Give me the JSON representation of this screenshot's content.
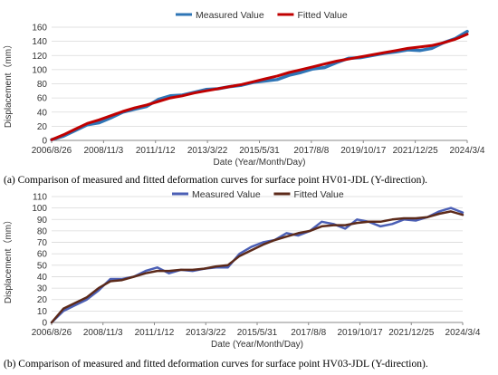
{
  "chart_data": [
    {
      "type": "line",
      "xlabel": "Date (Year/Month/Day)",
      "ylabel": "Displacement（mm）",
      "x_tick_labels": [
        "2006/8/26",
        "2008/11/3",
        "2011/1/12",
        "2013/3/22",
        "2015/5/31",
        "2017/8/8",
        "2019/10/17",
        "2021/12/25",
        "2024/3/4"
      ],
      "ylim": [
        0,
        160
      ],
      "y_ticks": [
        0,
        20,
        40,
        60,
        80,
        100,
        120,
        140,
        160
      ],
      "grid": true,
      "legend_position": "top-center",
      "series": [
        {
          "name": "Measured Value",
          "color": "#2e75b6",
          "x": [
            0,
            0.5,
            1,
            1.5,
            2,
            2.5,
            3,
            3.5,
            4,
            4.5,
            5,
            5.5,
            6,
            6.5,
            7,
            7.5,
            8,
            8.5,
            9,
            9.5,
            10,
            10.5,
            11,
            11.5,
            12,
            12.5,
            13,
            13.5,
            14,
            14.5,
            15,
            15.5,
            16,
            16.5,
            17,
            17.5
          ],
          "y": [
            1,
            6,
            14,
            22,
            25,
            32,
            40,
            44,
            48,
            58,
            63,
            64,
            68,
            72,
            73,
            76,
            78,
            82,
            84,
            86,
            92,
            96,
            101,
            103,
            110,
            116,
            117,
            120,
            123,
            125,
            128,
            127,
            130,
            138,
            144,
            154
          ]
        },
        {
          "name": "Fitted Value",
          "color": "#c00000",
          "x": [
            0,
            0.5,
            1,
            1.5,
            2,
            2.5,
            3,
            3.5,
            4,
            4.5,
            5,
            5.5,
            6,
            6.5,
            7,
            7.5,
            8,
            8.5,
            9,
            9.5,
            10,
            10.5,
            11,
            11.5,
            12,
            12.5,
            13,
            13.5,
            14,
            14.5,
            15,
            15.5,
            16,
            16.5,
            17,
            17.5
          ],
          "y": [
            1,
            8,
            16,
            24,
            29,
            35,
            41,
            46,
            50,
            55,
            60,
            63,
            67,
            70,
            73,
            76,
            79,
            83,
            87,
            91,
            96,
            100,
            104,
            108,
            112,
            115,
            118,
            121,
            124,
            127,
            130,
            132,
            134,
            138,
            143,
            150
          ]
        }
      ],
      "caption": "(a) Comparison of measured and fitted deformation curves for surface point HV01-JDL (Y-direction)."
    },
    {
      "type": "line",
      "xlabel": "Date (Year/Month/Day)",
      "ylabel": "Displacement（mm）",
      "x_tick_labels": [
        "2006/8/26",
        "2008/11/3",
        "2011/1/12",
        "2013/3/22",
        "2015/5/31",
        "2017/8/8",
        "2019/10/17",
        "2021/12/25",
        "2024/3/4"
      ],
      "ylim": [
        0,
        110
      ],
      "y_ticks": [
        0,
        10,
        20,
        30,
        40,
        50,
        60,
        70,
        80,
        90,
        100,
        110
      ],
      "grid": true,
      "legend_position": "top-center",
      "series": [
        {
          "name": "Measured Value",
          "color": "#4b5fb5",
          "x": [
            0,
            0.5,
            1,
            1.5,
            2,
            2.5,
            3,
            3.5,
            4,
            4.5,
            5,
            5.5,
            6,
            6.5,
            7,
            7.5,
            8,
            8.5,
            9,
            9.5,
            10,
            10.5,
            11,
            11.5,
            12,
            12.5,
            13,
            13.5,
            14,
            14.5,
            15,
            15.5,
            16,
            16.5,
            17,
            17.5
          ],
          "y": [
            0,
            10,
            15,
            20,
            28,
            38,
            38,
            40,
            45,
            48,
            43,
            46,
            45,
            47,
            48,
            48,
            60,
            66,
            70,
            72,
            78,
            76,
            80,
            88,
            86,
            82,
            90,
            88,
            84,
            86,
            90,
            89,
            92,
            97,
            100,
            96
          ]
        },
        {
          "name": "Fitted Value",
          "color": "#5c2a1a",
          "x": [
            0,
            0.5,
            1,
            1.5,
            2,
            2.5,
            3,
            3.5,
            4,
            4.5,
            5,
            5.5,
            6,
            6.5,
            7,
            7.5,
            8,
            8.5,
            9,
            9.5,
            10,
            10.5,
            11,
            11.5,
            12,
            12.5,
            13,
            13.5,
            14,
            14.5,
            15,
            15.5,
            16,
            16.5,
            17,
            17.5
          ],
          "y": [
            0,
            12,
            17,
            22,
            30,
            36,
            37,
            40,
            43,
            45,
            45,
            46,
            46,
            47,
            49,
            50,
            58,
            63,
            68,
            72,
            75,
            78,
            80,
            84,
            85,
            85,
            87,
            88,
            88,
            90,
            91,
            91,
            92,
            95,
            97,
            94
          ]
        }
      ],
      "caption": "(b) Comparison of measured and fitted deformation curves for surface point HV03-JDL (Y-direction)."
    }
  ]
}
